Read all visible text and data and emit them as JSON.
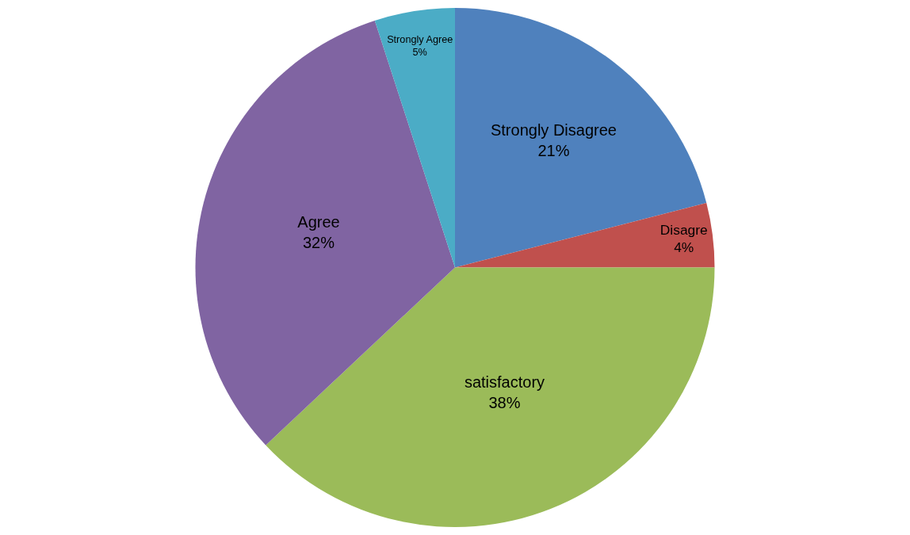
{
  "chart_data": {
    "type": "pie",
    "categories": [
      "Strongly Disagree",
      "Disagre",
      "satisfactory",
      "Agree",
      "Strongly Agree"
    ],
    "values": [
      21,
      4,
      38,
      32,
      5
    ],
    "value_labels": [
      "21%",
      "4%",
      "38%",
      "32%",
      "5%"
    ],
    "colors": [
      "#4f81bd",
      "#c0504d",
      "#9bbb59",
      "#8064a2",
      "#4bacc6"
    ],
    "legend": false
  }
}
